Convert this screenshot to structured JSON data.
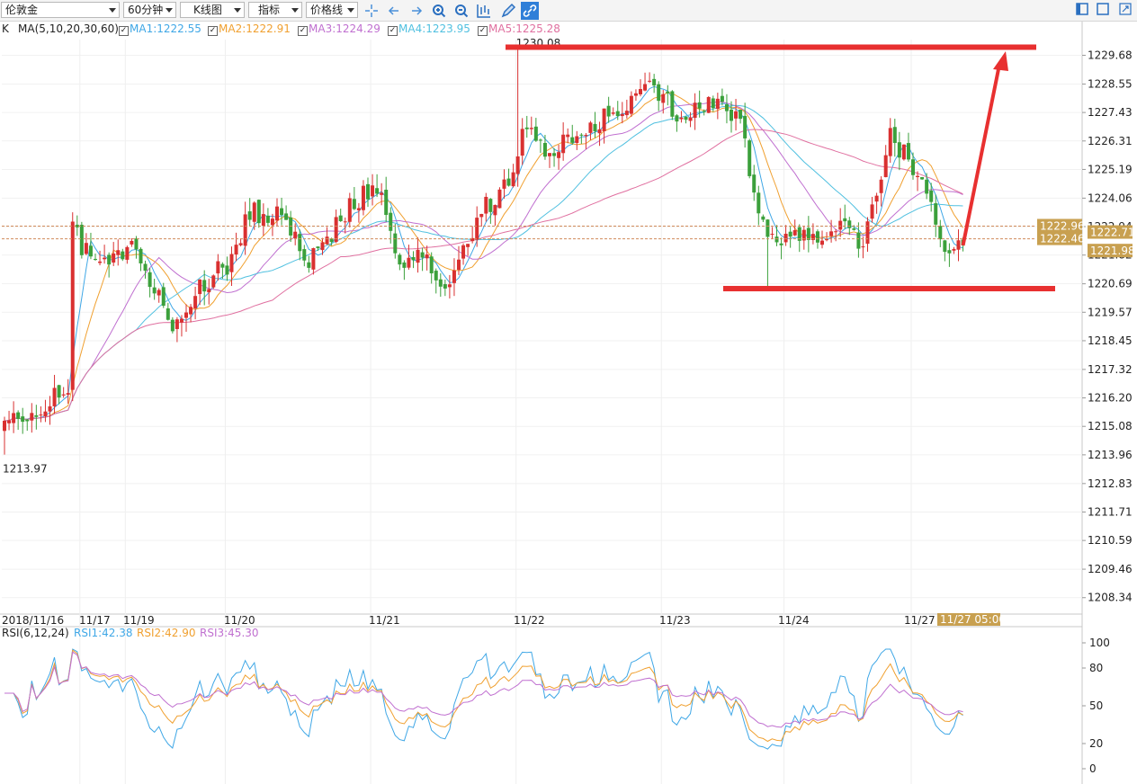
{
  "toolbar": {
    "symbol": "伦敦金",
    "period": "60分钟",
    "chart_kind": "K线图",
    "indicator": "指标",
    "line_type": "价格线",
    "icons": [
      "crosshair-icon",
      "arrow-left-icon",
      "arrow-right-icon",
      "zoom-in-icon",
      "zoom-out-icon",
      "bar-chart-icon",
      "pen-icon",
      "link-icon"
    ],
    "window_icons": [
      "layout-split-icon",
      "layout-single-icon",
      "expand-icon"
    ]
  },
  "ma_legend": {
    "prefix": "K",
    "params": "MA(5,10,20,30,60)",
    "items": [
      {
        "label": "MA1:1222.55",
        "color": "#3fa7e6"
      },
      {
        "label": "MA2:1222.91",
        "color": "#f0a030"
      },
      {
        "label": "MA3:1224.29",
        "color": "#c070d0"
      },
      {
        "label": "MA4:1223.95",
        "color": "#50c0e0"
      },
      {
        "label": "MA5:1225.28",
        "color": "#e070a0"
      }
    ]
  },
  "rsi_legend": {
    "params": "RSI(6,12,24)",
    "items": [
      {
        "label": "RSI1:42.38",
        "color": "#3fa7e6"
      },
      {
        "label": "RSI2:42.90",
        "color": "#f0a030"
      },
      {
        "label": "RSI3:45.30",
        "color": "#c070d0"
      }
    ]
  },
  "colors": {
    "up": "#d93030",
    "down": "#3ba03b",
    "annotation": "#e83030",
    "tag_bg": "#c8a050"
  },
  "chart_data": [
    {
      "type": "candlestick",
      "title": "",
      "ylim": [
        1207.8,
        1230.3
      ],
      "y_ticks": [
        "1229.68",
        "1228.55",
        "1227.43",
        "1226.31",
        "1225.19",
        "1224.06",
        "1222.94",
        "1221.82",
        "1220.69",
        "1219.57",
        "1218.45",
        "1217.32",
        "1216.20",
        "1215.08",
        "1213.96",
        "1212.83",
        "1211.71",
        "1210.59",
        "1209.46",
        "1208.34"
      ],
      "x_labels": [
        "2018/11/16",
        "11/17",
        "11/19",
        "11/20",
        "11/21",
        "11/22",
        "11/23",
        "11/24",
        "11/27"
      ],
      "cursor_time_label": "11/27 05:00",
      "price_tags": [
        "1222.96",
        "1222.71",
        "1221.98",
        "1222.46"
      ],
      "high_label": "1230.08",
      "low_label": "1213.97",
      "annotations": {
        "resistance_level": 1230.0,
        "support_level": 1220.5,
        "arrow": "up from last close toward 1230"
      },
      "anchors": [
        [
          0,
          1214.9
        ],
        [
          5,
          1215.6
        ],
        [
          10,
          1216.2
        ],
        [
          14,
          1216.8
        ],
        [
          15,
          1222.8
        ],
        [
          19,
          1221.6
        ],
        [
          24,
          1221.9
        ],
        [
          29,
          1222.1
        ],
        [
          34,
          1220.0
        ],
        [
          37,
          1219.2
        ],
        [
          43,
          1220.6
        ],
        [
          49,
          1221.5
        ],
        [
          54,
          1223.5
        ],
        [
          61,
          1223.3
        ],
        [
          67,
          1221.7
        ],
        [
          73,
          1223.0
        ],
        [
          79,
          1224.3
        ],
        [
          82,
          1224.6
        ],
        [
          87,
          1221.3
        ],
        [
          92,
          1221.9
        ],
        [
          96,
          1220.7
        ],
        [
          100,
          1221.4
        ],
        [
          104,
          1223.4
        ],
        [
          110,
          1224.5
        ],
        [
          115,
          1226.9
        ],
        [
          120,
          1225.8
        ],
        [
          127,
          1226.6
        ],
        [
          132,
          1227.2
        ],
        [
          138,
          1227.8
        ],
        [
          143,
          1228.5
        ],
        [
          148,
          1227.5
        ],
        [
          154,
          1227.7
        ],
        [
          158,
          1228.1
        ],
        [
          162,
          1227.0
        ],
        [
          166,
          1223.5
        ],
        [
          170,
          1222.4
        ],
        [
          174,
          1222.5
        ],
        [
          178,
          1222.6
        ],
        [
          184,
          1222.9
        ],
        [
          189,
          1222.0
        ],
        [
          195,
          1226.7
        ],
        [
          199,
          1225.4
        ],
        [
          204,
          1224.1
        ],
        [
          207,
          1222.1
        ],
        [
          211,
          1222.2
        ]
      ],
      "ma_series": [
        "MA1",
        "MA2",
        "MA3",
        "MA4",
        "MA5"
      ]
    },
    {
      "type": "line",
      "title": "RSI",
      "ylim": [
        0,
        100
      ],
      "y_ticks": [
        "100",
        "80",
        "50",
        "20",
        "0"
      ],
      "series": [
        {
          "name": "RSI1",
          "last": 42.38
        },
        {
          "name": "RSI2",
          "last": 42.9
        },
        {
          "name": "RSI3",
          "last": 45.3
        }
      ]
    }
  ]
}
